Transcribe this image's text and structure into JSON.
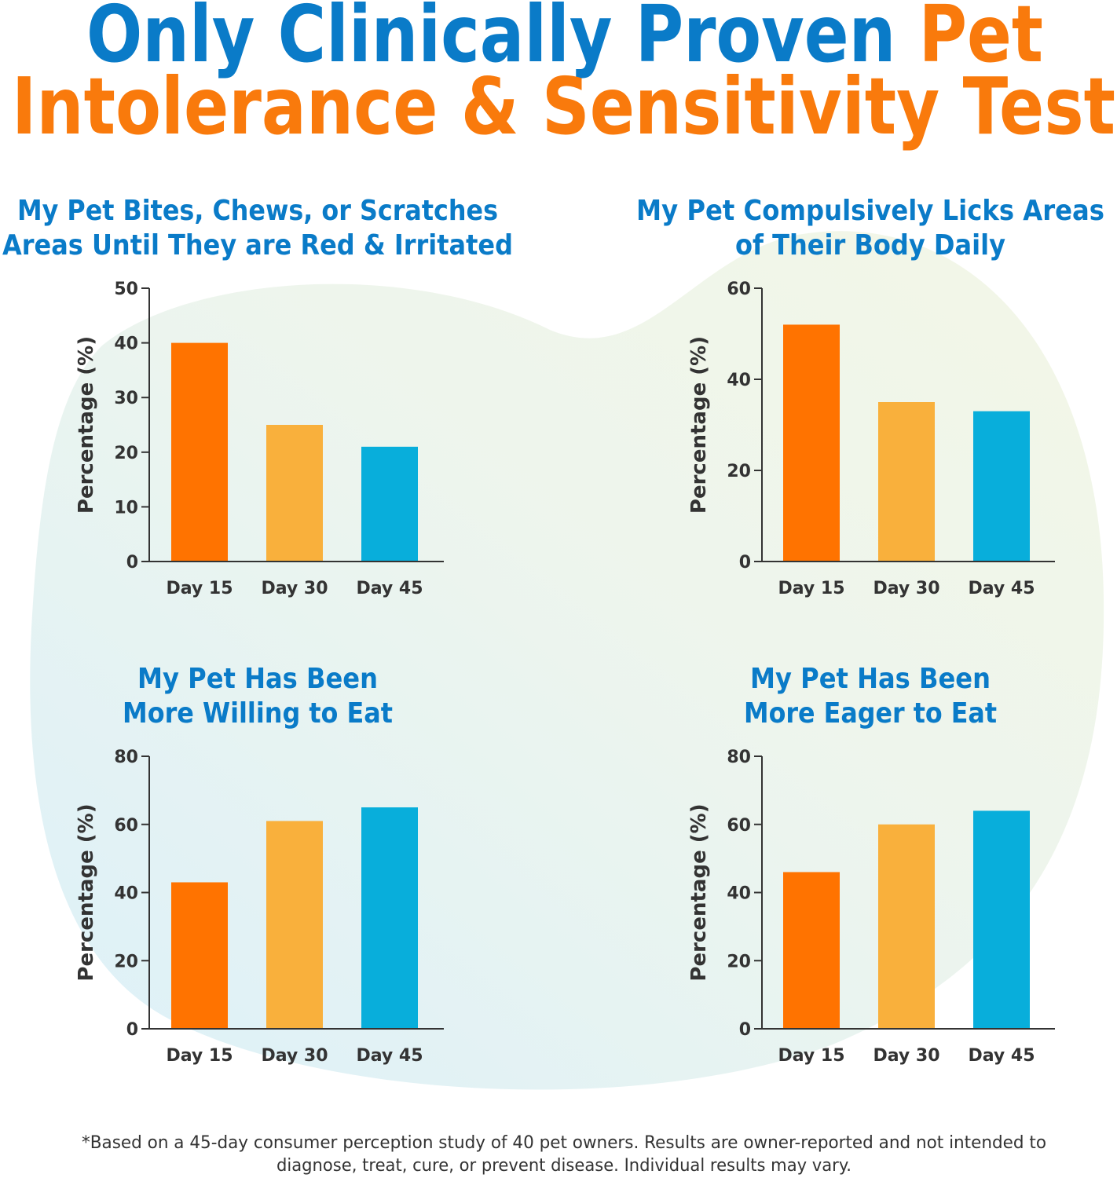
{
  "title_lines": [
    [
      {
        "text": "Only Clinically Proven ",
        "color": "#0a7bc8"
      },
      {
        "text": "Pet",
        "color": "#f97a0c"
      }
    ],
    [
      {
        "text": "Intolerance & Sensitivity Test",
        "color": "#f97a0c"
      }
    ]
  ],
  "chart_data": [
    {
      "type": "bar",
      "title": [
        "My Pet Bites, Chews, or Scratches",
        "Areas Until They are Red & Irritated"
      ],
      "ylabel": "Percentage (%)",
      "categories": [
        "Day 15",
        "Day 30",
        "Day 45"
      ],
      "values": [
        40,
        25,
        21
      ],
      "colors": [
        "#ff7300",
        "#f9b03c",
        "#08aedb"
      ],
      "ylim": [
        0,
        50
      ],
      "yticks": [
        0,
        10,
        20,
        30,
        40,
        50
      ]
    },
    {
      "type": "bar",
      "title": [
        "My Pet Compulsively Licks Areas",
        "of Their Body Daily"
      ],
      "ylabel": "Percentage (%)",
      "categories": [
        "Day 15",
        "Day 30",
        "Day 45"
      ],
      "values": [
        52,
        35,
        33
      ],
      "colors": [
        "#ff7300",
        "#f9b03c",
        "#08aedb"
      ],
      "ylim": [
        0,
        60
      ],
      "yticks": [
        0,
        20,
        40,
        60
      ]
    },
    {
      "type": "bar",
      "title": [
        "My Pet Has Been",
        "More Willing to Eat"
      ],
      "ylabel": "Percentage (%)",
      "categories": [
        "Day 15",
        "Day 30",
        "Day 45"
      ],
      "values": [
        43,
        61,
        65
      ],
      "colors": [
        "#ff7300",
        "#f9b03c",
        "#08aedb"
      ],
      "ylim": [
        0,
        80
      ],
      "yticks": [
        0,
        20,
        40,
        60,
        80
      ]
    },
    {
      "type": "bar",
      "title": [
        "My Pet Has Been",
        "More Eager to Eat"
      ],
      "ylabel": "Percentage (%)",
      "categories": [
        "Day 15",
        "Day 30",
        "Day 45"
      ],
      "values": [
        46,
        60,
        64
      ],
      "colors": [
        "#ff7300",
        "#f9b03c",
        "#08aedb"
      ],
      "ylim": [
        0,
        80
      ],
      "yticks": [
        0,
        20,
        40,
        60,
        80
      ]
    }
  ],
  "footnote": [
    "*Based on a 45-day consumer perception study of 40 pet owners. Results are owner-reported and not intended to",
    "diagnose, treat, cure, or prevent disease. Individual results may vary."
  ]
}
